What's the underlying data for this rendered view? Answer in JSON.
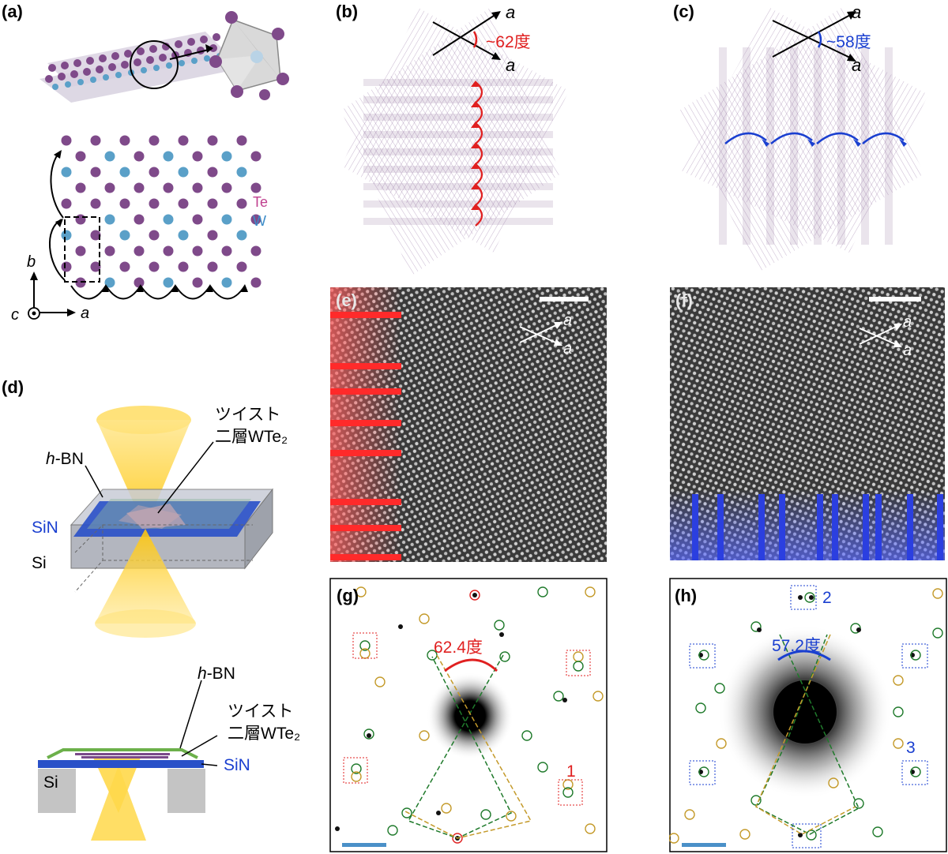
{
  "panels": {
    "a": {
      "label": "(a)",
      "element_labels": {
        "te": "Te",
        "w": "W"
      },
      "axis_labels": {
        "b": "b",
        "c": "c",
        "a": "a"
      },
      "colors": {
        "te": "#7f4a8a",
        "w": "#5aa0c8"
      }
    },
    "b": {
      "label": "(b)",
      "angle_text": "~62度",
      "axis_a_top": "a",
      "axis_a_bottom": "a",
      "accent": "#e02020"
    },
    "c": {
      "label": "(c)",
      "angle_text": "~58度",
      "axis_a_top": "a",
      "axis_a_bottom": "a",
      "accent": "#1a3fd0"
    },
    "d": {
      "label": "(d)",
      "twist_line1": "ツイスト",
      "twist_line2": "二層WTe₂",
      "hbn": "h-BN",
      "sin": "SiN",
      "si": "Si",
      "lower_hbn": "h-BN",
      "lower_twist_line1": "ツイスト",
      "lower_twist_line2": "二層WTe₂",
      "lower_sin": "SiN",
      "lower_si": "Si"
    },
    "e": {
      "label": "(e)",
      "axis_a_top": "a",
      "axis_a_bottom": "a"
    },
    "f": {
      "label": "(f)",
      "axis_a_top": "a",
      "axis_a_bottom": "a"
    },
    "g": {
      "label": "(g)",
      "angle_text": "62.4度",
      "spot_label_1": "1"
    },
    "h": {
      "label": "(h)",
      "angle_text": "57.2度",
      "spot_label_2": "2",
      "spot_label_3": "3"
    }
  }
}
